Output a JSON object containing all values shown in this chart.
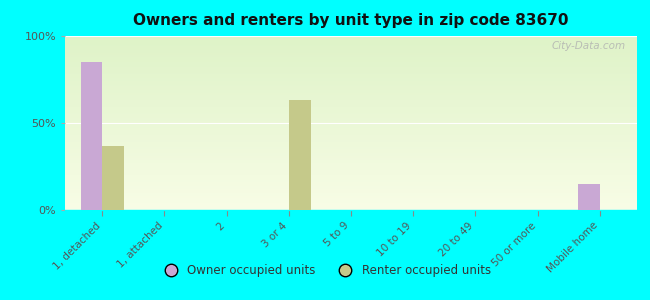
{
  "title": "Owners and renters by unit type in zip code 83670",
  "categories": [
    "1, detached",
    "1, attached",
    "2",
    "3 or 4",
    "5 to 9",
    "10 to 19",
    "20 to 49",
    "50 or more",
    "Mobile home"
  ],
  "owner_values": [
    85,
    0,
    0,
    0,
    0,
    0,
    0,
    0,
    15
  ],
  "renter_values": [
    37,
    0,
    0,
    63,
    0,
    0,
    0,
    0,
    0
  ],
  "owner_color": "#c9a8d4",
  "renter_color": "#c5c98a",
  "outer_bg": "#00ffff",
  "ylim": [
    0,
    100
  ],
  "yticks": [
    0,
    50,
    100
  ],
  "ytick_labels": [
    "0%",
    "50%",
    "100%"
  ],
  "bar_width": 0.35,
  "legend_owner": "Owner occupied units",
  "legend_renter": "Renter occupied units",
  "watermark": "City-Data.com"
}
